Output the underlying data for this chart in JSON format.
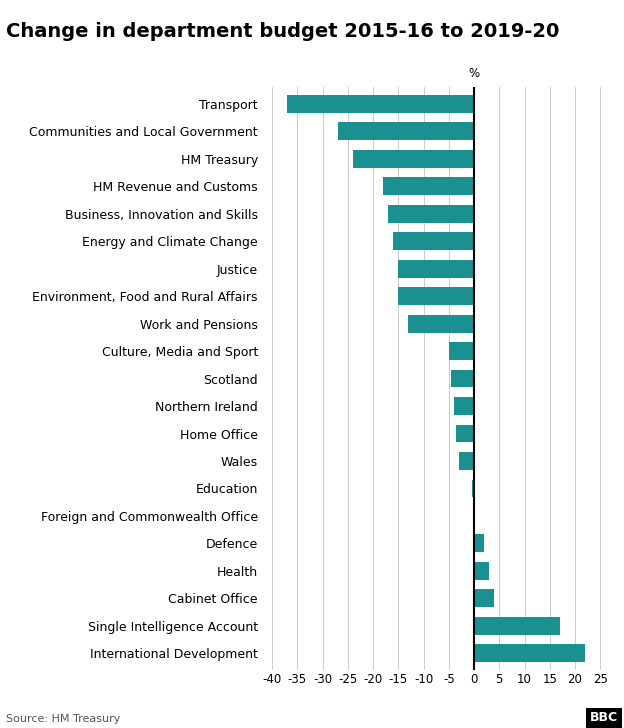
{
  "title": "Change in department budget 2015-16 to 2019-20",
  "percent_label": "%",
  "source": "Source: HM Treasury",
  "bar_color": "#1a9090",
  "xlim": [
    -42,
    26
  ],
  "xticks": [
    -40,
    -35,
    -30,
    -25,
    -20,
    -15,
    -10,
    -5,
    0,
    5,
    10,
    15,
    20,
    25
  ],
  "categories": [
    "International Development",
    "Single Intelligence Account",
    "Cabinet Office",
    "Health",
    "Defence",
    "Foreign and Commonwealth Office",
    "Education",
    "Wales",
    "Home Office",
    "Northern Ireland",
    "Scotland",
    "Culture, Media and Sport",
    "Work and Pensions",
    "Environment, Food and Rural Affairs",
    "Justice",
    "Energy and Climate Change",
    "Business, Innovation and Skills",
    "HM Revenue and Customs",
    "HM Treasury",
    "Communities and Local Government",
    "Transport"
  ],
  "values": [
    22,
    17,
    4,
    3,
    2,
    0,
    -0.5,
    -3,
    -3.5,
    -4,
    -4.5,
    -5,
    -13,
    -15,
    -15,
    -16,
    -17,
    -18,
    -24,
    -27,
    -37
  ],
  "background_color": "#ffffff",
  "grid_color": "#cccccc",
  "zero_line_color": "#000000",
  "title_fontsize": 14,
  "label_fontsize": 9,
  "tick_fontsize": 8.5,
  "source_fontsize": 8
}
